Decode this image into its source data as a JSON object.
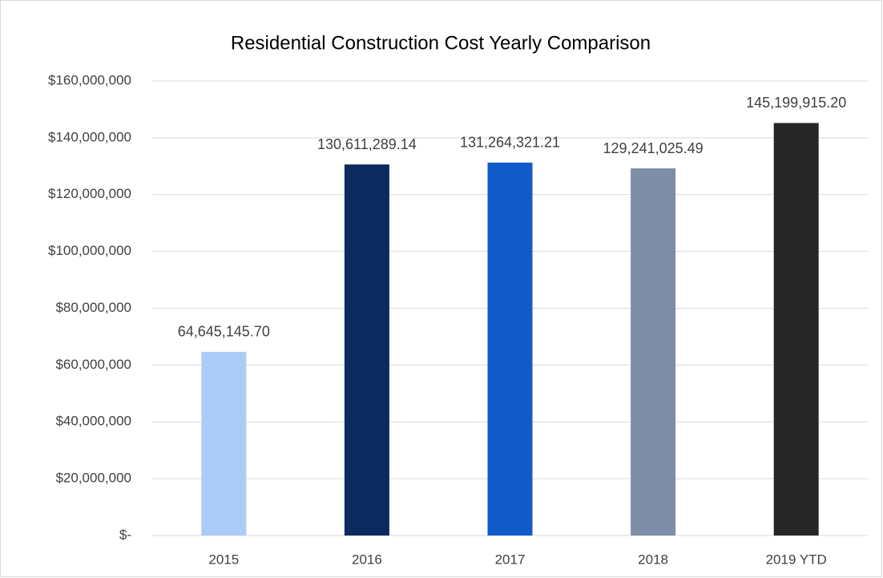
{
  "chart_data": {
    "type": "bar",
    "title": "Residential Construction Cost Yearly Comparison",
    "categories": [
      "2015",
      "2016",
      "2017",
      "2018",
      "2019 YTD"
    ],
    "values": [
      64645145.7,
      130611289.14,
      131264321.21,
      129241025.49,
      145199915.2
    ],
    "value_labels": [
      "64,645,145.70",
      "130,611,289.14",
      "131,264,321.21",
      "129,241,025.49",
      "145,199,915.20"
    ],
    "colors": [
      "#adcbf7",
      "#0b2a5e",
      "#105bc7",
      "#7f8ea8",
      "#262626"
    ],
    "ylim": [
      0,
      160000000
    ],
    "yticks": [
      {
        "value": 0,
        "label": "$-"
      },
      {
        "value": 20000000,
        "label": "$20,000,000"
      },
      {
        "value": 40000000,
        "label": "$40,000,000"
      },
      {
        "value": 60000000,
        "label": "$60,000,000"
      },
      {
        "value": 80000000,
        "label": "$80,000,000"
      },
      {
        "value": 100000000,
        "label": "$100,000,000"
      },
      {
        "value": 120000000,
        "label": "$120,000,000"
      },
      {
        "value": 140000000,
        "label": "$140,000,000"
      },
      {
        "value": 160000000,
        "label": "$160,000,000"
      }
    ],
    "grid": true
  }
}
